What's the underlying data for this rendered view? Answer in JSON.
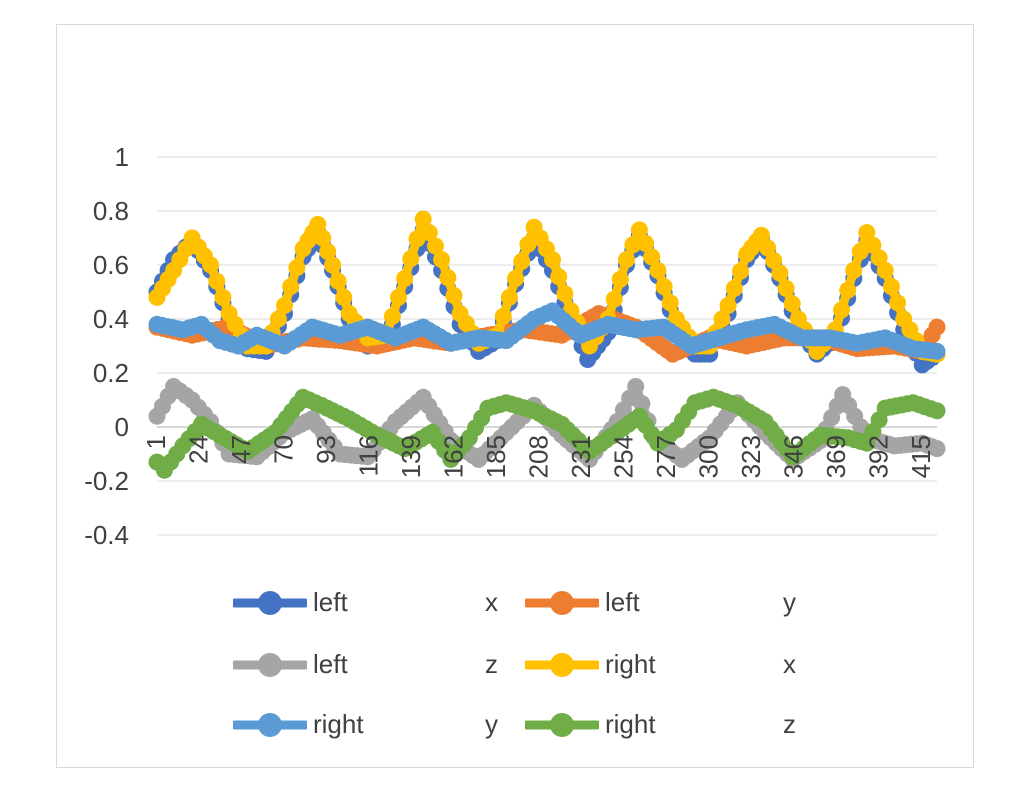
{
  "chart_data": {
    "type": "line",
    "title": "",
    "xlabel": "",
    "ylabel": "",
    "ylim": [
      -0.4,
      1
    ],
    "yticks": [
      "1",
      "0.8",
      "0.6",
      "0.4",
      "0.2",
      "0",
      "-0.2",
      "-0.4"
    ],
    "ytick_values": [
      1,
      0.8,
      0.6,
      0.4,
      0.2,
      0,
      -0.2,
      -0.4
    ],
    "xrange": [
      1,
      423
    ],
    "xticks": [
      "1",
      "24",
      "47",
      "70",
      "93",
      "116",
      "139",
      "162",
      "185",
      "208",
      "231",
      "254",
      "277",
      "300",
      "323",
      "346",
      "369",
      "392",
      "415"
    ],
    "grid": true,
    "legend_position": "bottom",
    "series": [
      {
        "name": "left",
        "legend_suffix": "x",
        "color": "#4472C4",
        "points": [
          [
            1,
            0.5
          ],
          [
            10,
            0.62
          ],
          [
            20,
            0.69
          ],
          [
            30,
            0.58
          ],
          [
            40,
            0.4
          ],
          [
            50,
            0.29
          ],
          [
            60,
            0.28
          ],
          [
            70,
            0.42
          ],
          [
            80,
            0.63
          ],
          [
            88,
            0.72
          ],
          [
            96,
            0.58
          ],
          [
            105,
            0.4
          ],
          [
            115,
            0.3
          ],
          [
            125,
            0.31
          ],
          [
            135,
            0.52
          ],
          [
            145,
            0.73
          ],
          [
            155,
            0.58
          ],
          [
            165,
            0.38
          ],
          [
            175,
            0.28
          ],
          [
            185,
            0.32
          ],
          [
            195,
            0.53
          ],
          [
            205,
            0.7
          ],
          [
            215,
            0.58
          ],
          [
            225,
            0.4
          ],
          [
            234,
            0.25
          ],
          [
            245,
            0.35
          ],
          [
            255,
            0.6
          ],
          [
            262,
            0.71
          ],
          [
            272,
            0.56
          ],
          [
            282,
            0.37
          ],
          [
            292,
            0.27
          ],
          [
            300,
            0.27
          ],
          [
            310,
            0.42
          ],
          [
            320,
            0.62
          ],
          [
            328,
            0.7
          ],
          [
            338,
            0.55
          ],
          [
            348,
            0.37
          ],
          [
            358,
            0.27
          ],
          [
            368,
            0.33
          ],
          [
            378,
            0.55
          ],
          [
            385,
            0.69
          ],
          [
            395,
            0.55
          ],
          [
            405,
            0.36
          ],
          [
            415,
            0.23
          ],
          [
            423,
            0.27
          ]
        ]
      },
      {
        "name": "left",
        "legend_suffix": "y",
        "color": "#ED7D31",
        "points": [
          [
            1,
            0.37
          ],
          [
            20,
            0.34
          ],
          [
            40,
            0.37
          ],
          [
            60,
            0.3
          ],
          [
            80,
            0.33
          ],
          [
            100,
            0.32
          ],
          [
            120,
            0.3
          ],
          [
            140,
            0.33
          ],
          [
            160,
            0.31
          ],
          [
            180,
            0.34
          ],
          [
            200,
            0.36
          ],
          [
            220,
            0.34
          ],
          [
            240,
            0.42
          ],
          [
            260,
            0.37
          ],
          [
            280,
            0.27
          ],
          [
            300,
            0.33
          ],
          [
            320,
            0.3
          ],
          [
            340,
            0.33
          ],
          [
            360,
            0.33
          ],
          [
            380,
            0.29
          ],
          [
            400,
            0.3
          ],
          [
            415,
            0.28
          ],
          [
            423,
            0.37
          ]
        ]
      },
      {
        "name": "left",
        "legend_suffix": "z",
        "color": "#A5A5A5",
        "points": [
          [
            1,
            0.04
          ],
          [
            10,
            0.15
          ],
          [
            20,
            0.1
          ],
          [
            30,
            0.02
          ],
          [
            40,
            -0.1
          ],
          [
            55,
            -0.11
          ],
          [
            70,
            -0.02
          ],
          [
            85,
            0.03
          ],
          [
            100,
            -0.1
          ],
          [
            115,
            -0.11
          ],
          [
            130,
            0.02
          ],
          [
            145,
            0.11
          ],
          [
            160,
            -0.05
          ],
          [
            175,
            -0.12
          ],
          [
            190,
            -0.02
          ],
          [
            205,
            0.08
          ],
          [
            220,
            -0.03
          ],
          [
            235,
            -0.12
          ],
          [
            250,
            0.02
          ],
          [
            260,
            0.15
          ],
          [
            270,
            -0.04
          ],
          [
            285,
            -0.12
          ],
          [
            300,
            -0.04
          ],
          [
            315,
            0.09
          ],
          [
            330,
            -0.02
          ],
          [
            345,
            -0.12
          ],
          [
            360,
            -0.05
          ],
          [
            372,
            0.12
          ],
          [
            385,
            -0.04
          ],
          [
            400,
            -0.07
          ],
          [
            415,
            -0.06
          ],
          [
            423,
            -0.08
          ]
        ]
      },
      {
        "name": "right",
        "legend_suffix": "x",
        "color": "#FFC000",
        "points": [
          [
            1,
            0.48
          ],
          [
            10,
            0.58
          ],
          [
            20,
            0.7
          ],
          [
            30,
            0.6
          ],
          [
            40,
            0.42
          ],
          [
            50,
            0.3
          ],
          [
            60,
            0.3
          ],
          [
            70,
            0.45
          ],
          [
            80,
            0.66
          ],
          [
            88,
            0.75
          ],
          [
            96,
            0.6
          ],
          [
            105,
            0.42
          ],
          [
            115,
            0.33
          ],
          [
            125,
            0.34
          ],
          [
            135,
            0.55
          ],
          [
            145,
            0.77
          ],
          [
            155,
            0.62
          ],
          [
            165,
            0.42
          ],
          [
            175,
            0.31
          ],
          [
            185,
            0.34
          ],
          [
            195,
            0.55
          ],
          [
            205,
            0.74
          ],
          [
            215,
            0.62
          ],
          [
            225,
            0.43
          ],
          [
            235,
            0.3
          ],
          [
            245,
            0.4
          ],
          [
            255,
            0.62
          ],
          [
            262,
            0.73
          ],
          [
            272,
            0.58
          ],
          [
            282,
            0.4
          ],
          [
            292,
            0.3
          ],
          [
            300,
            0.3
          ],
          [
            310,
            0.45
          ],
          [
            320,
            0.64
          ],
          [
            328,
            0.71
          ],
          [
            338,
            0.57
          ],
          [
            348,
            0.4
          ],
          [
            358,
            0.28
          ],
          [
            368,
            0.36
          ],
          [
            378,
            0.58
          ],
          [
            385,
            0.72
          ],
          [
            395,
            0.58
          ],
          [
            405,
            0.4
          ],
          [
            415,
            0.28
          ],
          [
            423,
            0.27
          ]
        ]
      },
      {
        "name": "right",
        "legend_suffix": "y",
        "color": "#5B9BD5",
        "points": [
          [
            1,
            0.38
          ],
          [
            15,
            0.36
          ],
          [
            25,
            0.38
          ],
          [
            35,
            0.32
          ],
          [
            45,
            0.3
          ],
          [
            55,
            0.34
          ],
          [
            70,
            0.3
          ],
          [
            85,
            0.37
          ],
          [
            100,
            0.34
          ],
          [
            115,
            0.37
          ],
          [
            130,
            0.33
          ],
          [
            145,
            0.37
          ],
          [
            160,
            0.31
          ],
          [
            175,
            0.33
          ],
          [
            190,
            0.32
          ],
          [
            205,
            0.4
          ],
          [
            215,
            0.43
          ],
          [
            230,
            0.34
          ],
          [
            245,
            0.38
          ],
          [
            260,
            0.36
          ],
          [
            275,
            0.37
          ],
          [
            290,
            0.3
          ],
          [
            305,
            0.33
          ],
          [
            320,
            0.36
          ],
          [
            335,
            0.38
          ],
          [
            350,
            0.33
          ],
          [
            365,
            0.33
          ],
          [
            380,
            0.31
          ],
          [
            395,
            0.33
          ],
          [
            410,
            0.29
          ],
          [
            423,
            0.28
          ]
        ]
      },
      {
        "name": "right",
        "legend_suffix": "z",
        "color": "#70AD47",
        "points": [
          [
            1,
            -0.13
          ],
          [
            5,
            -0.16
          ],
          [
            15,
            -0.07
          ],
          [
            25,
            0.01
          ],
          [
            35,
            -0.03
          ],
          [
            50,
            -0.09
          ],
          [
            65,
            -0.02
          ],
          [
            80,
            0.11
          ],
          [
            90,
            0.08
          ],
          [
            105,
            0.03
          ],
          [
            120,
            -0.03
          ],
          [
            135,
            -0.08
          ],
          [
            150,
            -0.02
          ],
          [
            160,
            -0.12
          ],
          [
            170,
            -0.04
          ],
          [
            180,
            0.07
          ],
          [
            190,
            0.09
          ],
          [
            205,
            0.06
          ],
          [
            220,
            0.01
          ],
          [
            235,
            -0.09
          ],
          [
            250,
            -0.02
          ],
          [
            262,
            0.04
          ],
          [
            272,
            -0.06
          ],
          [
            282,
            -0.01
          ],
          [
            292,
            0.09
          ],
          [
            302,
            0.11
          ],
          [
            315,
            0.08
          ],
          [
            330,
            0.02
          ],
          [
            345,
            -0.11
          ],
          [
            360,
            -0.03
          ],
          [
            375,
            -0.04
          ],
          [
            385,
            -0.06
          ],
          [
            395,
            0.07
          ],
          [
            410,
            0.09
          ],
          [
            423,
            0.06
          ]
        ]
      }
    ]
  }
}
